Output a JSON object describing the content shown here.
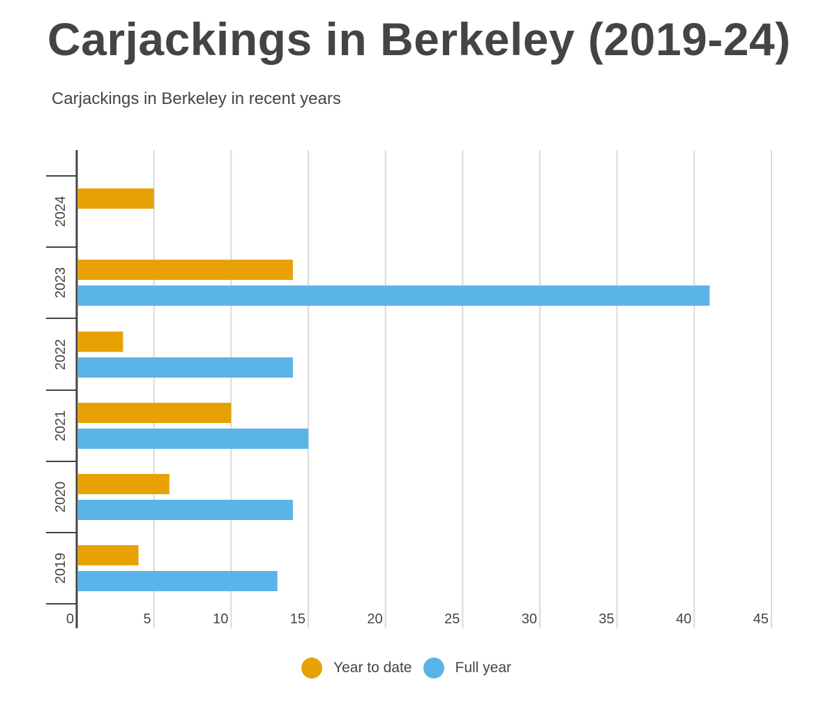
{
  "chart_data": {
    "type": "bar",
    "orientation": "horizontal",
    "title": "Carjackings in Berkeley (2019-24)",
    "subtitle": "Carjackings in Berkeley in recent years",
    "categories": [
      "2024",
      "2023",
      "2022",
      "2021",
      "2020",
      "2019"
    ],
    "series": [
      {
        "name": "Year to date",
        "color": "#E8A103",
        "values": [
          5,
          14,
          3,
          10,
          6,
          4
        ]
      },
      {
        "name": "Full year",
        "color": "#5BB4E8",
        "values": [
          null,
          41,
          14,
          15,
          14,
          13
        ]
      }
    ],
    "xlim": [
      0,
      45
    ],
    "x_ticks": [
      "0",
      "5",
      "10",
      "15",
      "20",
      "25",
      "30",
      "35",
      "40",
      "45"
    ],
    "xlabel": "",
    "ylabel": "",
    "grid": true,
    "legend_position": "bottom-center"
  }
}
